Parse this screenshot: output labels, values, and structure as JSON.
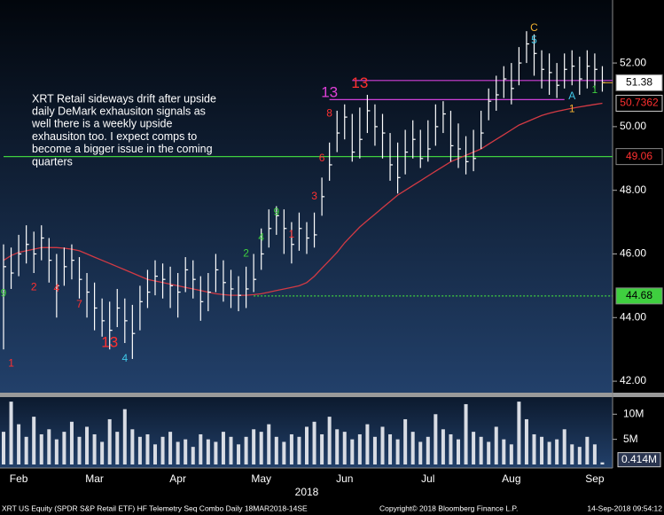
{
  "chart_data": {
    "type": "ohlc",
    "categories": [
      null,
      null,
      "Feb",
      null,
      null,
      null,
      null,
      null,
      null,
      null,
      null,
      null,
      "Mar",
      null,
      null,
      null,
      null,
      null,
      null,
      null,
      null,
      null,
      null,
      "Apr",
      null,
      null,
      null,
      null,
      null,
      null,
      null,
      null,
      null,
      null,
      "May",
      null,
      null,
      null,
      null,
      null,
      null,
      null,
      null,
      null,
      null,
      "Jun",
      null,
      null,
      null,
      null,
      null,
      null,
      null,
      null,
      null,
      null,
      "Jul",
      null,
      null,
      null,
      null,
      null,
      null,
      null,
      null,
      null,
      null,
      "Aug",
      null,
      null,
      null,
      null,
      null,
      null,
      null,
      null,
      null,
      null,
      "Sep",
      null
    ],
    "x_label": "2018",
    "ylim": [
      41.64,
      53.98
    ],
    "yticks": [
      {
        "value": 42,
        "label": "42.00"
      },
      {
        "value": 44,
        "label": "44.00"
      },
      {
        "value": 46,
        "label": "46.00"
      },
      {
        "value": 48,
        "label": "48.00"
      },
      {
        "value": 50,
        "label": "50.00"
      },
      {
        "value": 52,
        "label": "52.00"
      }
    ],
    "price": {
      "color": "#ffffff",
      "high": [
        46.3,
        46.2,
        46.6,
        46.9,
        46.7,
        46.9,
        46.5,
        46.0,
        46.2,
        46.3,
        45.9,
        45.4,
        45.1,
        44.6,
        44.5,
        44.9,
        44.6,
        44.4,
        45.0,
        45.5,
        45.8,
        45.7,
        45.6,
        45.4,
        45.9,
        45.8,
        45.3,
        45.4,
        46.0,
        45.8,
        45.5,
        45.3,
        45.6,
        46.0,
        46.8,
        47.4,
        47.5,
        47.4,
        47.0,
        47.3,
        47.0,
        47.3,
        48.4,
        49.5,
        50.5,
        50.7,
        50.4,
        50.6,
        51.0,
        50.7,
        50.4,
        49.8,
        49.5,
        49.9,
        50.2,
        49.9,
        50.2,
        50.7,
        50.8,
        50.5,
        50.1,
        49.7,
        49.9,
        50.5,
        51.2,
        51.6,
        51.9,
        52.0,
        52.5,
        53.0,
        52.9,
        52.4,
        52.3,
        52.0,
        52.3,
        52.4,
        52.2,
        52.4,
        52.3,
        51.9
      ],
      "low": [
        43.0,
        44.9,
        45.3,
        45.7,
        45.4,
        45.8,
        45.1,
        44.0,
        45.0,
        45.2,
        44.6,
        44.0,
        43.6,
        43.4,
        43.0,
        43.7,
        43.2,
        42.7,
        43.6,
        44.3,
        44.7,
        44.6,
        44.3,
        44.0,
        44.8,
        44.6,
        43.9,
        44.2,
        44.8,
        44.5,
        44.3,
        44.2,
        44.3,
        44.8,
        45.5,
        46.2,
        46.6,
        46.0,
        45.7,
        46.1,
        46.0,
        46.2,
        47.2,
        48.3,
        49.2,
        49.6,
        48.9,
        49.0,
        49.8,
        49.4,
        49.0,
        48.3,
        47.9,
        48.5,
        49.0,
        48.7,
        48.9,
        49.4,
        49.8,
        48.9,
        48.7,
        48.5,
        48.6,
        49.3,
        50.2,
        50.5,
        50.9,
        50.7,
        51.3,
        52.0,
        51.6,
        51.2,
        51.0,
        50.9,
        51.2,
        51.3,
        51.0,
        51.2,
        51.2,
        51.1
      ],
      "close": [
        45.6,
        45.4,
        46.0,
        46.3,
        46.0,
        46.5,
        45.8,
        45.0,
        45.6,
        45.8,
        45.2,
        44.8,
        44.3,
        43.9,
        43.6,
        44.3,
        43.9,
        43.5,
        44.5,
        44.8,
        45.3,
        45.2,
        45.0,
        44.8,
        45.5,
        45.2,
        44.5,
        44.8,
        45.5,
        45.1,
        44.9,
        44.7,
        44.9,
        45.2,
        46.0,
        46.8,
        47.2,
        46.8,
        46.3,
        46.8,
        46.5,
        46.6,
        47.8,
        48.8,
        49.8,
        50.3,
        49.2,
        49.6,
        50.5,
        50.0,
        49.8,
        48.8,
        48.4,
        49.2,
        49.6,
        49.0,
        49.3,
        50.0,
        50.4,
        49.4,
        49.3,
        48.9,
        49.0,
        49.8,
        50.8,
        51.0,
        51.5,
        51.2,
        52.0,
        52.6,
        52.3,
        51.8,
        51.7,
        51.3,
        51.8,
        51.9,
        51.5,
        51.9,
        51.8,
        51.38
      ]
    },
    "ma": {
      "color": "#d23a44",
      "values": [
        45.8,
        45.95,
        46.05,
        46.1,
        46.15,
        46.2,
        46.2,
        46.2,
        46.18,
        46.15,
        46.1,
        46.0,
        45.9,
        45.8,
        45.7,
        45.6,
        45.5,
        45.4,
        45.3,
        45.2,
        45.15,
        45.1,
        45.05,
        45.0,
        44.95,
        44.9,
        44.85,
        44.8,
        44.75,
        44.72,
        44.7,
        44.7,
        44.7,
        44.72,
        44.75,
        44.8,
        44.85,
        44.9,
        44.95,
        45.0,
        45.1,
        45.3,
        45.55,
        45.8,
        46.05,
        46.35,
        46.6,
        46.85,
        47.05,
        47.25,
        47.45,
        47.65,
        47.85,
        48.0,
        48.15,
        48.3,
        48.45,
        48.6,
        48.75,
        48.9,
        49.0,
        49.1,
        49.2,
        49.3,
        49.45,
        49.6,
        49.75,
        49.9,
        50.05,
        50.15,
        50.25,
        50.35,
        50.42,
        50.48,
        50.53,
        50.58,
        50.62,
        50.66,
        50.7,
        50.7362
      ]
    },
    "levels": [
      {
        "value": 51.45,
        "color": "#d040d8",
        "start": 46,
        "style": "solid"
      },
      {
        "value": 50.85,
        "color": "#d040d8",
        "start": 43,
        "end": 74,
        "style": "solid"
      },
      {
        "value": 49.06,
        "color": "#3fcf3f",
        "start": 0,
        "style": "solid",
        "tag_fill": "#000000",
        "tag_text": "#ff3030"
      },
      {
        "value": 44.68,
        "color": "#3fcf3f",
        "start": 33,
        "style": "dotted",
        "tag_fill": "#3fcf3f",
        "tag_text": "#000000"
      }
    ],
    "close_tag": {
      "fill": "#ffffff",
      "text": "#000000"
    },
    "ma_tag": {
      "fill": "#000000",
      "text": "#ff3030"
    },
    "annotations": [
      {
        "text": "1",
        "x": 1,
        "y": 42.55,
        "color": "#ff3030"
      },
      {
        "text": "2",
        "x": 4,
        "y": 44.95,
        "color": "#ff3030"
      },
      {
        "text": "4",
        "x": 7,
        "y": 44.9,
        "color": "#ff3030"
      },
      {
        "text": "7",
        "x": 10,
        "y": 44.4,
        "color": "#ff3030"
      },
      {
        "text": "9",
        "x": 0,
        "y": 44.75,
        "color": "#3fcf3f"
      },
      {
        "text": "13",
        "x": 14,
        "y": 43.2,
        "color": "#ff3030"
      },
      {
        "text": "4",
        "x": 16,
        "y": 42.7,
        "color": "#40c8e8"
      },
      {
        "text": "2",
        "x": 32,
        "y": 46.0,
        "color": "#3fcf3f"
      },
      {
        "text": "4",
        "x": 34,
        "y": 46.5,
        "color": "#3fcf3f"
      },
      {
        "text": "9",
        "x": 36,
        "y": 47.3,
        "color": "#3fcf3f"
      },
      {
        "text": "1",
        "x": 38,
        "y": 46.6,
        "color": "#ff3030"
      },
      {
        "text": "3",
        "x": 41,
        "y": 47.8,
        "color": "#ff3030"
      },
      {
        "text": "6",
        "x": 42,
        "y": 49.0,
        "color": "#ff3030"
      },
      {
        "text": "8",
        "x": 43,
        "y": 50.4,
        "color": "#ff3030"
      },
      {
        "text": "13",
        "x": 43,
        "y": 51.05,
        "color": "#e040d8"
      },
      {
        "text": "13",
        "x": 47,
        "y": 51.35,
        "color": "#ff3030"
      },
      {
        "text": "C",
        "x": 70,
        "y": 53.1,
        "color": "#f0b030"
      },
      {
        "text": "5",
        "x": 70,
        "y": 52.7,
        "color": "#40c8e8"
      },
      {
        "text": "A",
        "x": 75,
        "y": 50.95,
        "color": "#40c8e8"
      },
      {
        "text": "1",
        "x": 75,
        "y": 50.55,
        "color": "#f0b030"
      },
      {
        "text": "1",
        "x": 78,
        "y": 51.15,
        "color": "#3fcf3f"
      }
    ],
    "note": [
      "XRT Retail sideways drift after upside",
      "daily DeMark exhausiton signals as",
      "well there is a weekly upside",
      "exhausiton too.  I expect comps to",
      "become a bigger issue in the coming",
      "quarters"
    ],
    "volume": {
      "color": "#d8dce4",
      "values": [
        6.5,
        12.5,
        8.0,
        5.5,
        9.5,
        6.0,
        7.0,
        5.0,
        6.5,
        8.5,
        5.5,
        7.5,
        6.0,
        4.5,
        9.0,
        6.5,
        11.0,
        7.0,
        5.5,
        6.0,
        4.0,
        5.5,
        6.5,
        4.5,
        5.0,
        3.5,
        6.0,
        5.0,
        4.5,
        6.5,
        5.5,
        4.0,
        5.5,
        7.0,
        6.5,
        8.0,
        5.5,
        4.5,
        6.0,
        5.5,
        7.5,
        8.5,
        6.0,
        9.5,
        7.0,
        6.5,
        5.0,
        6.0,
        8.0,
        5.5,
        7.5,
        6.0,
        5.0,
        9.0,
        6.5,
        4.5,
        5.5,
        10.0,
        7.0,
        6.0,
        5.0,
        12.0,
        6.5,
        5.5,
        4.5,
        7.5,
        5.0,
        4.0,
        12.5,
        9.0,
        6.0,
        5.5,
        4.5,
        5.0,
        7.0,
        4.0,
        3.5,
        5.5,
        4.0,
        0.414
      ],
      "last_label": "0.414M",
      "ylim": [
        0,
        13.4
      ],
      "yticks": [
        {
          "value": 5,
          "label": "5M"
        },
        {
          "value": 10,
          "label": "10M"
        }
      ]
    },
    "footer": {
      "left": "XRT US Equity (SPDR S&P Retail ETF) HF Telemetry Seq Combo  Daily 18MAR2018-14SE",
      "center": "Copyright© 2018 Bloomberg Finance L.P.",
      "right": "14-Sep-2018 09:54:12"
    }
  }
}
